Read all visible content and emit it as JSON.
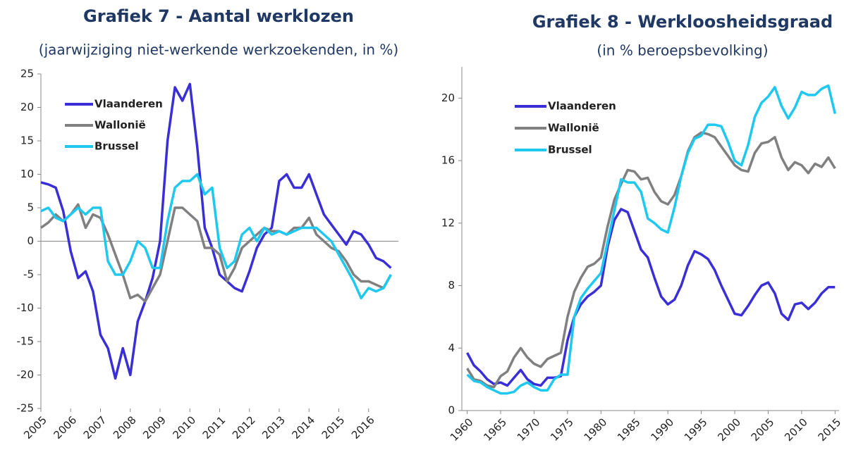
{
  "chart_data": [
    {
      "type": "line",
      "title": "Grafiek 7 - Aantal werklozen",
      "subtitle": "(jaarwijziging niet-werkende werkzoekenden, in %)",
      "x": [
        2005,
        2005.25,
        2005.5,
        2005.75,
        2006,
        2006.25,
        2006.5,
        2006.75,
        2007,
        2007.25,
        2007.5,
        2007.75,
        2008,
        2008.25,
        2008.5,
        2008.75,
        2009,
        2009.25,
        2009.5,
        2009.75,
        2010,
        2010.25,
        2010.5,
        2010.75,
        2011,
        2011.25,
        2011.5,
        2011.75,
        2012,
        2012.25,
        2012.5,
        2012.75,
        2013,
        2013.25,
        2013.5,
        2013.75,
        2014,
        2014.25,
        2014.5,
        2014.75,
        2015,
        2015.25,
        2015.5,
        2015.75,
        2016,
        2016.25,
        2016.5,
        2016.75
      ],
      "series": [
        {
          "name": "Vlaanderen",
          "color": "#3a2fd6",
          "values": [
            8.8,
            8.5,
            8,
            4.5,
            -1.5,
            -5.5,
            -4.5,
            -7.5,
            -14,
            -16,
            -20.5,
            -16,
            -20,
            -12,
            -9,
            -5.5,
            0,
            15,
            23,
            21,
            23.5,
            14,
            2,
            -1,
            -5,
            -6,
            -7,
            -7.5,
            -4.5,
            -1,
            1,
            2,
            9,
            10,
            8,
            8,
            10,
            7,
            4,
            2.5,
            1,
            -0.5,
            1.5,
            1,
            -0.5,
            -2.5,
            -3,
            -4
          ]
        },
        {
          "name": "Wallonië",
          "color": "#808080",
          "values": [
            2,
            2.8,
            4,
            3,
            4,
            5.5,
            2,
            4,
            3.5,
            1,
            -2,
            -5,
            -8.5,
            -8,
            -9,
            -7,
            -5,
            0,
            5,
            5,
            4,
            3,
            -1,
            -1,
            -2,
            -6,
            -4,
            -1,
            0,
            1,
            2,
            1.5,
            1.5,
            1,
            2,
            2,
            3.5,
            1,
            0,
            -1,
            -1.5,
            -3,
            -5,
            -6,
            -6,
            -6.5,
            -7,
            -5
          ]
        },
        {
          "name": "Brussel",
          "color": "#1ec8ef",
          "values": [
            4.5,
            5,
            3.5,
            3,
            4,
            5,
            4,
            5,
            5,
            -3,
            -5,
            -5,
            -3,
            0,
            -1,
            -4,
            -4,
            3,
            8,
            9,
            9,
            10,
            7,
            8,
            -1,
            -4,
            -3,
            1,
            2,
            0,
            2,
            1,
            1.5,
            1,
            1.5,
            2,
            2,
            2,
            1,
            0,
            -2,
            -4,
            -6,
            -8.5,
            -7,
            -7.5,
            -7,
            -5
          ]
        }
      ],
      "xlim": [
        2005,
        2017
      ],
      "xticks": [
        2005,
        2006,
        2007,
        2008,
        2009,
        2010,
        2011,
        2012,
        2013,
        2014,
        2015,
        2016
      ],
      "ylim": [
        -25,
        25
      ],
      "yticks": [
        -25,
        -20,
        -15,
        -10,
        -5,
        0,
        5,
        10,
        15,
        20,
        25
      ],
      "legend": "upper left"
    },
    {
      "type": "line",
      "title": "Grafiek 8 - Werkloosheidsgraad",
      "subtitle": "(in % beroepsbevolking)",
      "x": [
        1960,
        1961,
        1962,
        1963,
        1964,
        1965,
        1966,
        1967,
        1968,
        1969,
        1970,
        1971,
        1972,
        1973,
        1974,
        1975,
        1976,
        1977,
        1978,
        1979,
        1980,
        1981,
        1982,
        1983,
        1984,
        1985,
        1986,
        1987,
        1988,
        1989,
        1990,
        1991,
        1992,
        1993,
        1994,
        1995,
        1996,
        1997,
        1998,
        1999,
        2000,
        2001,
        2002,
        2003,
        2004,
        2005,
        2006,
        2007,
        2008,
        2009,
        2010,
        2011,
        2012,
        2013,
        2014,
        2015
      ],
      "series": [
        {
          "name": "Vlaanderen",
          "color": "#3a2fd6",
          "values": [
            3.7,
            2.9,
            2.5,
            2.0,
            1.7,
            1.8,
            1.6,
            2.1,
            2.6,
            2.0,
            1.7,
            1.6,
            2.1,
            2.1,
            2.2,
            4.5,
            6.0,
            6.8,
            7.3,
            7.6,
            8.0,
            10.5,
            12.2,
            12.9,
            12.7,
            11.5,
            10.3,
            9.8,
            8.5,
            7.3,
            6.8,
            7.1,
            8.0,
            9.3,
            10.2,
            10.0,
            9.7,
            9.0,
            8.0,
            7.1,
            6.2,
            6.1,
            6.7,
            7.4,
            8.0,
            8.2,
            7.5,
            6.2,
            5.8,
            6.8,
            6.9,
            6.5,
            6.9,
            7.5,
            7.9,
            7.9
          ]
        },
        {
          "name": "Wallonië",
          "color": "#808080",
          "values": [
            2.7,
            2.0,
            1.9,
            1.6,
            1.5,
            2.2,
            2.5,
            3.4,
            4.0,
            3.4,
            3.0,
            2.8,
            3.3,
            3.5,
            3.7,
            6.0,
            7.6,
            8.5,
            9.2,
            9.4,
            9.8,
            11.8,
            13.5,
            14.5,
            15.4,
            15.3,
            14.8,
            14.9,
            14.0,
            13.4,
            13.2,
            13.8,
            15.0,
            16.6,
            17.5,
            17.8,
            17.7,
            17.5,
            16.9,
            16.3,
            15.7,
            15.4,
            15.3,
            16.5,
            17.1,
            17.2,
            17.5,
            16.2,
            15.4,
            15.9,
            15.7,
            15.2,
            15.8,
            15.6,
            16.2,
            15.5
          ]
        },
        {
          "name": "Brussel",
          "color": "#1ec8ef",
          "values": [
            2.3,
            1.9,
            1.8,
            1.5,
            1.3,
            1.1,
            1.1,
            1.2,
            1.6,
            1.8,
            1.5,
            1.3,
            1.3,
            2.0,
            2.3,
            2.3,
            6.0,
            7.2,
            7.8,
            8.3,
            8.8,
            10.8,
            12.8,
            14.8,
            14.6,
            14.6,
            14.0,
            12.3,
            12.0,
            11.6,
            11.4,
            13.0,
            15.0,
            16.5,
            17.4,
            17.6,
            18.3,
            18.3,
            18.2,
            17.2,
            16.0,
            15.7,
            17.0,
            18.8,
            19.7,
            20.1,
            20.7,
            19.5,
            18.7,
            19.4,
            20.4,
            20.2,
            20.2,
            20.6,
            20.8,
            19.0
          ]
        }
      ],
      "xlim": [
        1959.2,
        2015.6
      ],
      "xticks": [
        1960,
        1965,
        1970,
        1975,
        1980,
        1985,
        1990,
        1995,
        2000,
        2005,
        2010,
        2015
      ],
      "ylim": [
        0,
        22
      ],
      "yticks": [
        0,
        4,
        8,
        12,
        16,
        20
      ],
      "legend": "upper left"
    }
  ]
}
